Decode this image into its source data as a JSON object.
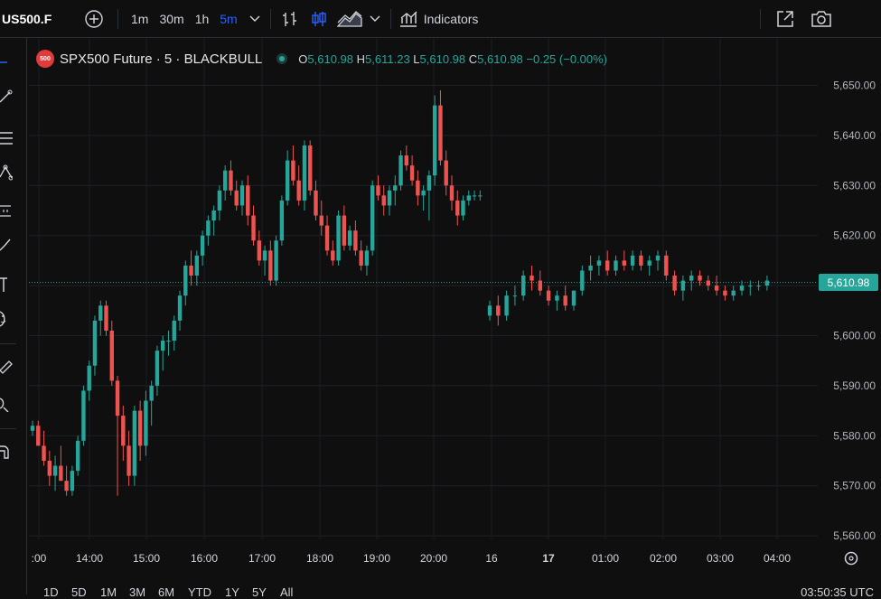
{
  "header": {
    "symbol": "US500.F",
    "intervals": [
      "1m",
      "30m",
      "1h",
      "5m"
    ],
    "active_interval": "5m",
    "indicators_label": "Indicators"
  },
  "legend": {
    "badge": "500",
    "title": "SPX500 Future · 5 · BLACKBULL",
    "o_key": "O",
    "o_val": "5,610.98",
    "h_key": "H",
    "h_val": "5,611.23",
    "l_key": "L",
    "l_val": "5,610.98",
    "c_key": "C",
    "c_val": "5,610.98",
    "change": "−0.25 (−0.00%)"
  },
  "price_axis": {
    "labels": [
      "5,650.00",
      "5,640.00",
      "5,630.00",
      "5,620.00",
      "5,610.00",
      "5,600.00",
      "5,590.00",
      "5,580.00",
      "5,570.00",
      "5,560.00"
    ],
    "last_price": "5,610.98"
  },
  "time_axis": {
    "labels": [
      ":00",
      "14:00",
      "15:00",
      "16:00",
      "17:00",
      "18:00",
      "19:00",
      "20:00",
      "16",
      "17",
      "01:00",
      "02:00",
      "03:00",
      "04:00"
    ]
  },
  "bottom": {
    "ranges": [
      "1D",
      "5D",
      "1M",
      "3M",
      "6M",
      "YTD",
      "1Y",
      "5Y",
      "All"
    ],
    "clock": "03:50:35 UTC"
  },
  "colors": {
    "up": "#26a69a",
    "down": "#ef5350",
    "accent": "#2962ff",
    "background": "#0f0f0f"
  },
  "chart_data": {
    "type": "candlestick",
    "title": "SPX500 Future · 5 · BLACKBULL",
    "ylim": [
      5557,
      5655
    ],
    "x_labels": [
      ":00",
      "14:00",
      "15:00",
      "16:00",
      "17:00",
      "18:00",
      "19:00",
      "20:00",
      "16",
      "17",
      "01:00",
      "02:00",
      "03:00",
      "04:00"
    ],
    "y_ticks": [
      5650,
      5640,
      5630,
      5620,
      5610,
      5600,
      5590,
      5580,
      5570,
      5560
    ],
    "last_price": 5610.98,
    "series_session1": [
      [
        5581,
        5583,
        5580,
        5582
      ],
      [
        5582,
        5583,
        5578,
        5578
      ],
      [
        5578,
        5581,
        5574,
        5575
      ],
      [
        5575,
        5577,
        5570,
        5572
      ],
      [
        5572,
        5576,
        5569,
        5574
      ],
      [
        5574,
        5578,
        5571,
        5571
      ],
      [
        5571,
        5574,
        5568,
        5569
      ],
      [
        5569,
        5574,
        5568,
        5573
      ],
      [
        5573,
        5580,
        5572,
        5579
      ],
      [
        5579,
        5590,
        5578,
        5589
      ],
      [
        5589,
        5595,
        5587,
        5594
      ],
      [
        5594,
        5604,
        5592,
        5603
      ],
      [
        5603,
        5607,
        5600,
        5606
      ],
      [
        5606,
        5607,
        5600,
        5601
      ],
      [
        5601,
        5603,
        5590,
        5591
      ],
      [
        5591,
        5592,
        5568,
        5584
      ],
      [
        5584,
        5586,
        5575,
        5578
      ],
      [
        5578,
        5581,
        5570,
        5572
      ],
      [
        5572,
        5586,
        5570,
        5585
      ],
      [
        5585,
        5587,
        5575,
        5578
      ],
      [
        5578,
        5589,
        5576,
        5587
      ],
      [
        5587,
        5591,
        5582,
        5590
      ],
      [
        5590,
        5598,
        5588,
        5597
      ],
      [
        5597,
        5600,
        5593,
        5599
      ],
      [
        5599,
        5601,
        5596,
        5599
      ],
      [
        5599,
        5604,
        5597,
        5603
      ],
      [
        5603,
        5609,
        5601,
        5608
      ],
      [
        5608,
        5615,
        5606,
        5614
      ],
      [
        5614,
        5617,
        5610,
        5612
      ],
      [
        5612,
        5617,
        5610,
        5616
      ],
      [
        5616,
        5621,
        5614,
        5620
      ],
      [
        5620,
        5624,
        5618,
        5623
      ],
      [
        5623,
        5626,
        5620,
        5625
      ],
      [
        5625,
        5630,
        5623,
        5629
      ],
      [
        5629,
        5634,
        5627,
        5633
      ],
      [
        5633,
        5635,
        5628,
        5629
      ],
      [
        5629,
        5631,
        5625,
        5626
      ],
      [
        5626,
        5631,
        5624,
        5630
      ],
      [
        5630,
        5632,
        5622,
        5624
      ],
      [
        5624,
        5626,
        5618,
        5619
      ],
      [
        5619,
        5621,
        5614,
        5615
      ],
      [
        5615,
        5618,
        5612,
        5617
      ],
      [
        5617,
        5619,
        5610,
        5611
      ],
      [
        5611,
        5620,
        5610,
        5619
      ],
      [
        5619,
        5628,
        5618,
        5627
      ],
      [
        5627,
        5637,
        5626,
        5635
      ],
      [
        5635,
        5638,
        5630,
        5631
      ],
      [
        5631,
        5634,
        5626,
        5627
      ],
      [
        5627,
        5639,
        5625,
        5638
      ],
      [
        5638,
        5639,
        5628,
        5629
      ],
      [
        5629,
        5631,
        5623,
        5624
      ],
      [
        5624,
        5627,
        5620,
        5622
      ],
      [
        5622,
        5624,
        5616,
        5617
      ],
      [
        5617,
        5619,
        5614,
        5615
      ],
      [
        5615,
        5625,
        5614,
        5624
      ],
      [
        5624,
        5626,
        5617,
        5618
      ],
      [
        5618,
        5622,
        5617,
        5621
      ],
      [
        5621,
        5623,
        5616,
        5617
      ],
      [
        5617,
        5619,
        5613,
        5614
      ],
      [
        5614,
        5618,
        5612,
        5617
      ],
      [
        5617,
        5631,
        5616,
        5630
      ],
      [
        5630,
        5632,
        5627,
        5628
      ],
      [
        5628,
        5630,
        5624,
        5626
      ],
      [
        5626,
        5630,
        5624,
        5629
      ],
      [
        5629,
        5632,
        5626,
        5630
      ],
      [
        5630,
        5637,
        5629,
        5636
      ],
      [
        5636,
        5638,
        5633,
        5634
      ],
      [
        5634,
        5636,
        5630,
        5631
      ],
      [
        5631,
        5633,
        5626,
        5628
      ],
      [
        5628,
        5630,
        5625,
        5629
      ],
      [
        5629,
        5633,
        5623,
        5632
      ],
      [
        5632,
        5648,
        5630,
        5646
      ],
      [
        5646,
        5649,
        5634,
        5635
      ],
      [
        5635,
        5637,
        5628,
        5630
      ],
      [
        5630,
        5632,
        5625,
        5627
      ],
      [
        5627,
        5629,
        5622,
        5624
      ],
      [
        5624,
        5628,
        5623,
        5627
      ],
      [
        5627,
        5629,
        5626,
        5628
      ],
      [
        5628,
        5629,
        5627,
        5628
      ],
      [
        5628,
        5629,
        5627,
        5628
      ]
    ],
    "series_session2": [
      [
        5604,
        5607,
        5603,
        5606
      ],
      [
        5606,
        5608,
        5602,
        5604
      ],
      [
        5604,
        5609,
        5603,
        5608
      ],
      [
        5608,
        5610,
        5606,
        5608
      ],
      [
        5608,
        5613,
        5607,
        5612
      ],
      [
        5612,
        5614,
        5609,
        5611
      ],
      [
        5611,
        5613,
        5608,
        5609
      ],
      [
        5609,
        5610,
        5606,
        5607
      ],
      [
        5607,
        5609,
        5605,
        5608
      ],
      [
        5608,
        5610,
        5605,
        5606
      ],
      [
        5606,
        5609,
        5605,
        5609
      ],
      [
        5609,
        5614,
        5608,
        5613
      ],
      [
        5613,
        5616,
        5611,
        5614
      ],
      [
        5614,
        5616,
        5612,
        5615
      ],
      [
        5615,
        5617,
        5612,
        5613
      ],
      [
        5613,
        5616,
        5612,
        5615
      ],
      [
        5615,
        5617,
        5613,
        5614
      ],
      [
        5614,
        5617,
        5613,
        5616
      ],
      [
        5616,
        5617,
        5613,
        5614
      ],
      [
        5614,
        5616,
        5612,
        5615
      ],
      [
        5615,
        5617,
        5613,
        5616
      ],
      [
        5616,
        5617,
        5611,
        5612
      ],
      [
        5612,
        5613,
        5608,
        5609
      ],
      [
        5609,
        5612,
        5607,
        5611
      ],
      [
        5611,
        5613,
        5609,
        5612
      ],
      [
        5612,
        5613,
        5610,
        5611
      ],
      [
        5611,
        5612,
        5609,
        5610
      ],
      [
        5610,
        5612,
        5608,
        5609
      ],
      [
        5609,
        5610,
        5607,
        5608
      ],
      [
        5608,
        5610,
        5607,
        5609
      ],
      [
        5609,
        5611,
        5608,
        5610
      ],
      [
        5610,
        5611,
        5608,
        5610
      ],
      [
        5610,
        5611,
        5609,
        5610
      ],
      [
        5610,
        5612,
        5609,
        5611
      ]
    ]
  }
}
